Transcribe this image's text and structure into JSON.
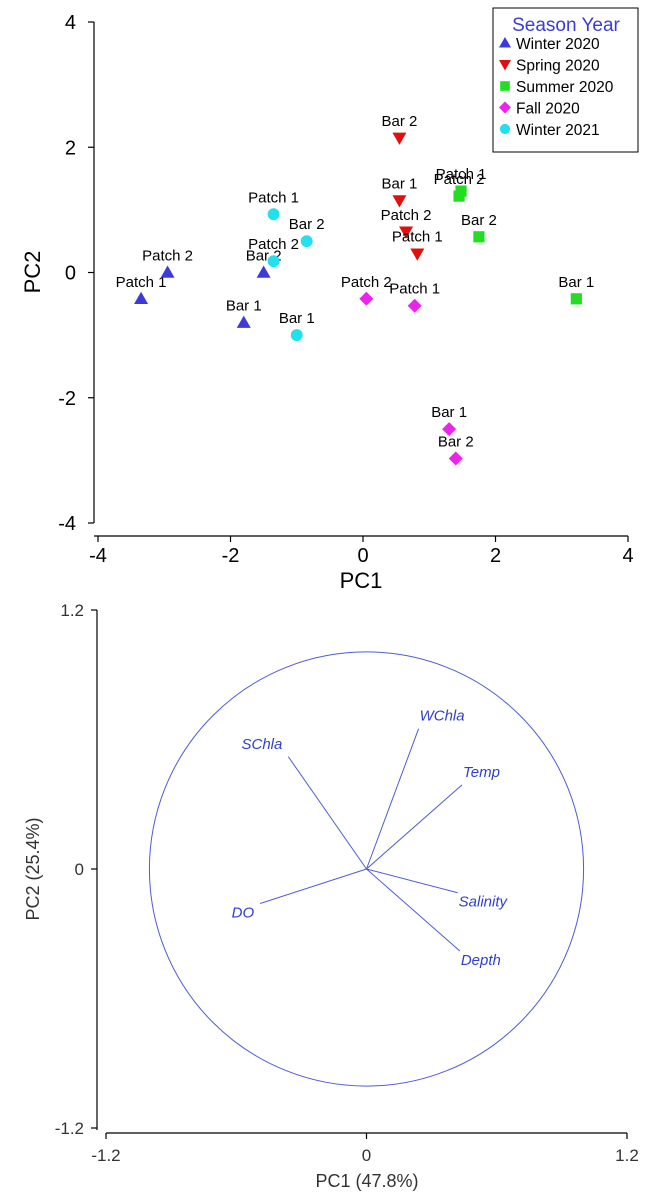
{
  "colors": {
    "winter2020": "#3b3bdc",
    "spring2020": "#e01010",
    "summer2020": "#22dd22",
    "fall2020": "#ee22ee",
    "winter2021": "#22e0ee",
    "loading": "#4f5bd5",
    "loading_text": "#2f3fd0"
  },
  "chart_data": [
    {
      "type": "scatter",
      "title": "",
      "xlabel": "PC1",
      "ylabel": "PC2",
      "xlim": [
        -4,
        4
      ],
      "ylim": [
        -4,
        4
      ],
      "xticks": [
        "-4",
        "-2",
        "0",
        "2",
        "4"
      ],
      "yticks": [
        "4",
        "2",
        "0",
        "-2",
        "-4"
      ],
      "grid": false,
      "legend": {
        "title": "Season Year",
        "placement": "top-right",
        "entries": [
          "Winter 2020",
          "Spring 2020",
          "Summer 2020",
          "Fall 2020",
          "Winter 2021"
        ]
      },
      "series": [
        {
          "name": "Winter 2020",
          "marker": "triangle-up",
          "color_key": "winter2020",
          "points": [
            {
              "label": "Patch 1",
              "x": -3.35,
              "y": -0.42
            },
            {
              "label": "Patch 2",
              "x": -2.95,
              "y": 0.0
            },
            {
              "label": "Bar 1",
              "x": -1.8,
              "y": -0.8
            },
            {
              "label": "Bar 2",
              "x": -1.5,
              "y": 0.0
            }
          ]
        },
        {
          "name": "Spring 2020",
          "marker": "triangle-down",
          "color_key": "spring2020",
          "points": [
            {
              "label": "Bar 2",
              "x": 0.55,
              "y": 2.15
            },
            {
              "label": "Bar 1",
              "x": 0.55,
              "y": 1.15
            },
            {
              "label": "Patch 2",
              "x": 0.65,
              "y": 0.65
            },
            {
              "label": "Patch 1",
              "x": 0.82,
              "y": 0.3
            }
          ]
        },
        {
          "name": "Summer 2020",
          "marker": "square",
          "color_key": "summer2020",
          "points": [
            {
              "label": "Patch 1",
              "x": 1.48,
              "y": 1.3
            },
            {
              "label": "Patch 2",
              "x": 1.45,
              "y": 1.22
            },
            {
              "label": "Bar 2",
              "x": 1.75,
              "y": 0.57
            },
            {
              "label": "Bar 1",
              "x": 3.22,
              "y": -0.42
            }
          ]
        },
        {
          "name": "Fall 2020",
          "marker": "diamond",
          "color_key": "fall2020",
          "points": [
            {
              "label": "Patch 2",
              "x": 0.05,
              "y": -0.42
            },
            {
              "label": "Patch 1",
              "x": 0.78,
              "y": -0.53
            },
            {
              "label": "Bar 1",
              "x": 1.3,
              "y": -2.5
            },
            {
              "label": "Bar 2",
              "x": 1.4,
              "y": -2.97
            }
          ]
        },
        {
          "name": "Winter 2021",
          "marker": "circle",
          "color_key": "winter2021",
          "points": [
            {
              "label": "Patch 1",
              "x": -1.35,
              "y": 0.93
            },
            {
              "label": "Bar 2",
              "x": -0.85,
              "y": 0.5
            },
            {
              "label": "Patch 2",
              "x": -1.35,
              "y": 0.18
            },
            {
              "label": "Bar 1",
              "x": -1.0,
              "y": -1.0
            }
          ]
        }
      ]
    },
    {
      "type": "line",
      "subtype": "loading-plot",
      "title": "",
      "xlabel": "PC1 (47.8%)",
      "ylabel": "PC2 (25.4%)",
      "xlim": [
        -1.2,
        1.2
      ],
      "ylim": [
        -1.2,
        1.2
      ],
      "xticks": [
        "-1.2",
        "0",
        "1.2"
      ],
      "yticks": [
        "1.2",
        "0",
        "-1.2"
      ],
      "circle_radius": 1.0,
      "grid": false,
      "vectors": [
        {
          "name": "WChla",
          "x": 0.24,
          "y": 0.65
        },
        {
          "name": "SChla",
          "x": -0.36,
          "y": 0.52
        },
        {
          "name": "Temp",
          "x": 0.44,
          "y": 0.39
        },
        {
          "name": "Salinity",
          "x": 0.42,
          "y": -0.11
        },
        {
          "name": "Depth",
          "x": 0.43,
          "y": -0.38
        },
        {
          "name": "DO",
          "x": -0.49,
          "y": -0.16
        }
      ]
    }
  ]
}
